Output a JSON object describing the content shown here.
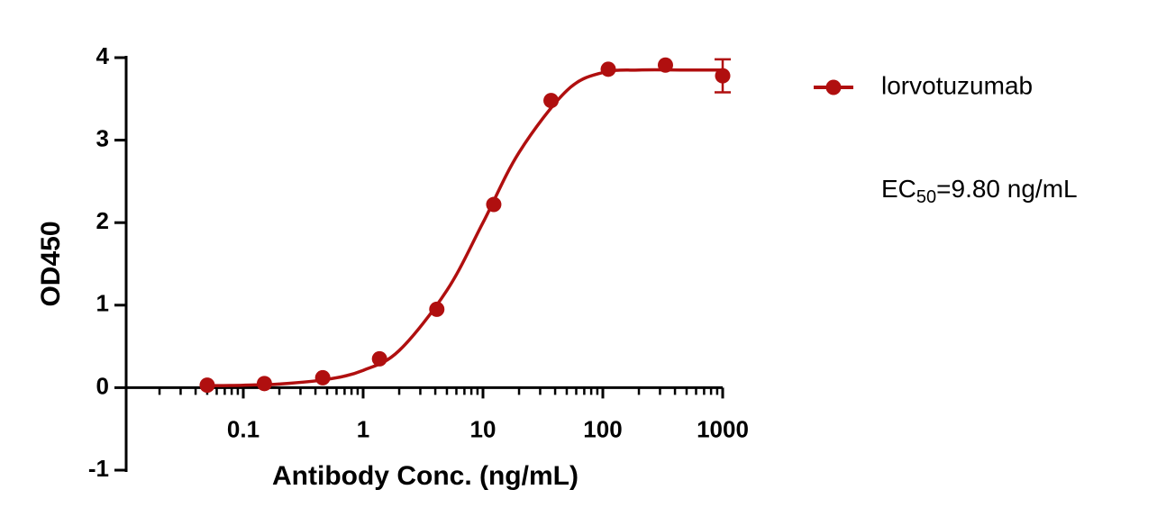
{
  "chart_data": {
    "type": "scatter",
    "xlabel": "Antibody Conc. (ng/mL)",
    "ylabel": "OD450",
    "xscale": "log",
    "xlim": [
      0.01,
      1000
    ],
    "xticks": [
      0.1,
      1,
      10,
      100,
      1000
    ],
    "xminorticks": [
      0.02,
      0.03,
      0.04,
      0.05,
      0.06,
      0.07,
      0.08,
      0.09,
      0.2,
      0.3,
      0.4,
      0.5,
      0.6,
      0.7,
      0.8,
      0.9,
      2,
      3,
      4,
      5,
      6,
      7,
      8,
      9,
      20,
      30,
      40,
      50,
      60,
      70,
      80,
      90,
      200,
      300,
      400,
      500,
      600,
      700,
      800,
      900
    ],
    "ylim": [
      -1,
      4
    ],
    "yticks": [
      -1,
      0,
      1,
      2,
      3,
      4
    ],
    "legend": "right",
    "series": [
      {
        "name": "lorvotuzumab",
        "color": "#b00f0f",
        "x": [
          0.05,
          0.15,
          0.46,
          1.37,
          4.12,
          12.3,
          37,
          111,
          333,
          1000
        ],
        "values": [
          0.03,
          0.05,
          0.12,
          0.35,
          0.95,
          2.22,
          3.48,
          3.86,
          3.91,
          3.78
        ],
        "errors": [
          null,
          null,
          null,
          null,
          null,
          null,
          null,
          null,
          null,
          0.2
        ],
        "fit_curve": {
          "x": [
            0.05,
            0.1,
            0.2,
            0.5,
            1,
            2,
            5,
            10,
            20,
            50,
            100,
            200,
            500,
            1000
          ],
          "values": [
            0.024,
            0.03,
            0.044,
            0.1,
            0.21,
            0.45,
            1.18,
            2.0,
            2.85,
            3.6,
            3.82,
            3.85,
            3.85,
            3.85
          ]
        }
      }
    ],
    "annotation": {
      "prefix": "EC",
      "sub": "50",
      "suffix": "=9.80 ng/mL"
    }
  }
}
